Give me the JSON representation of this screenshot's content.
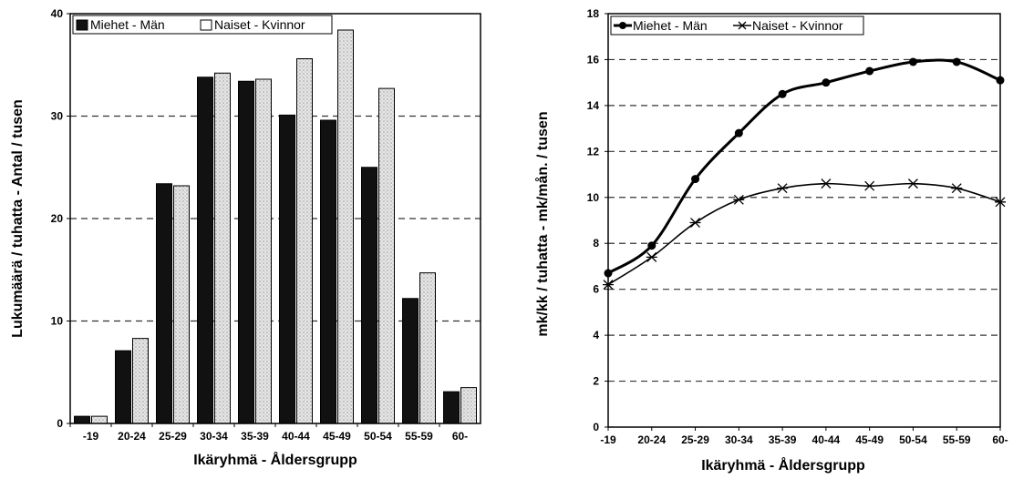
{
  "colors": {
    "men_fill": "#111111",
    "women_fill": "#d9d9d9",
    "grid": "#333333"
  },
  "chart_data": [
    {
      "type": "bar",
      "title": "",
      "categories": [
        "-19",
        "20-24",
        "25-29",
        "30-34",
        "35-39",
        "40-44",
        "45-49",
        "50-54",
        "55-59",
        "60-"
      ],
      "series": [
        {
          "name": "Miehet - Män",
          "values": [
            0.7,
            7.1,
            23.4,
            33.8,
            33.4,
            30.1,
            29.6,
            25.0,
            12.2,
            3.1
          ]
        },
        {
          "name": "Naiset - Kvinnor",
          "values": [
            0.7,
            8.3,
            23.2,
            34.2,
            33.6,
            35.6,
            38.4,
            32.7,
            14.7,
            3.5
          ]
        }
      ],
      "xlabel": "Ikäryhmä - Åldersgrupp",
      "ylabel": "Lukumäärä / tuhatta - Antal / tusen",
      "ylim": [
        0,
        40
      ],
      "yticks": [
        "0",
        "10",
        "20",
        "30",
        "40"
      ],
      "grid": true,
      "legend_position": "top-left"
    },
    {
      "type": "line",
      "title": "",
      "categories": [
        "-19",
        "20-24",
        "25-29",
        "30-34",
        "35-39",
        "40-44",
        "45-49",
        "50-54",
        "55-59",
        "60-"
      ],
      "series": [
        {
          "name": "Miehet - Män",
          "values": [
            6.7,
            7.9,
            10.8,
            12.8,
            14.5,
            15.0,
            15.5,
            15.9,
            15.9,
            15.1
          ]
        },
        {
          "name": "Naiset - Kvinnor",
          "values": [
            6.2,
            7.4,
            8.9,
            9.9,
            10.4,
            10.6,
            10.5,
            10.6,
            10.4,
            9.8
          ]
        }
      ],
      "xlabel": "Ikäryhmä - Åldersgrupp",
      "ylabel": "mk/kk / tuhatta - mk/mån. / tusen",
      "ylim": [
        0,
        18
      ],
      "yticks": [
        "0",
        "2",
        "4",
        "6",
        "8",
        "10",
        "12",
        "14",
        "16",
        "18"
      ],
      "grid": true,
      "legend_position": "top-left"
    }
  ]
}
